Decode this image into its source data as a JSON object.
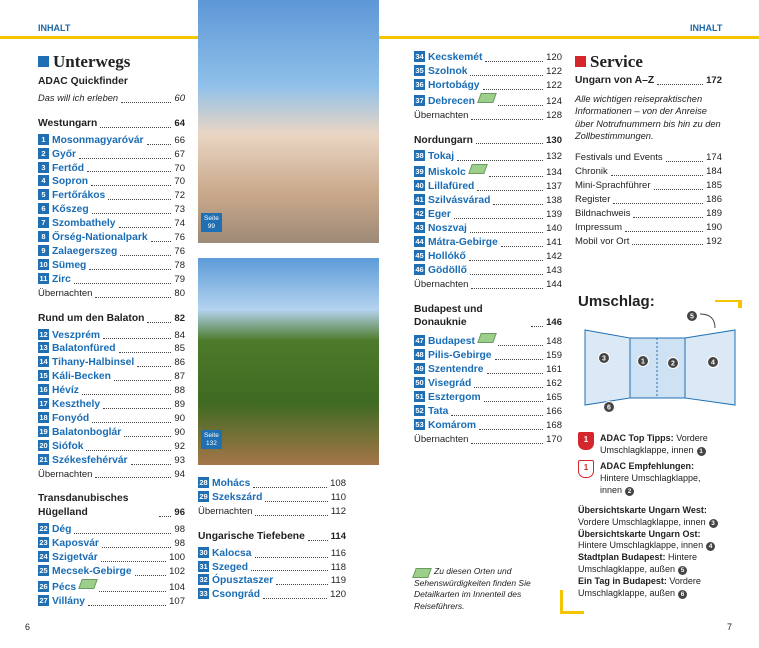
{
  "header": {
    "left": "INHALT",
    "right": "INHALT"
  },
  "pages": {
    "left": 6,
    "right": 7
  },
  "photos": [
    {
      "label": "Seite",
      "page": 99
    },
    {
      "label": "Seite",
      "page": 132
    }
  ],
  "unterwegs": {
    "title": "Unterwegs",
    "columns": [
      [
        {
          "heading": "ADAC Quickfinder",
          "intro": {
            "text": "Das will ich erleben",
            "page": 60
          }
        },
        {
          "heading": "Westungarn",
          "page": 64,
          "items": [
            {
              "num": 1,
              "name": "Mosonmagyaróvár",
              "page": 66
            },
            {
              "num": 2,
              "name": "Győr",
              "page": 67
            },
            {
              "num": 3,
              "name": "Fertőd",
              "page": 70
            },
            {
              "num": 4,
              "name": "Sopron",
              "page": 70
            },
            {
              "num": 5,
              "name": "Fertőrákos",
              "page": 72
            },
            {
              "num": 6,
              "name": "Kőszeg",
              "page": 73
            },
            {
              "num": 7,
              "name": "Szombathely",
              "page": 74
            },
            {
              "num": 8,
              "name": "Őrség-Nationalpark",
              "page": 76
            },
            {
              "num": 9,
              "name": "Zalaegerszeg",
              "page": 76
            },
            {
              "num": 10,
              "name": "Sümeg",
              "page": 78
            },
            {
              "num": 11,
              "name": "Zirc",
              "page": 79
            },
            {
              "name": "Übernachten",
              "page": 80
            }
          ]
        },
        {
          "heading": "Rund um den Balaton",
          "page": 82,
          "items": [
            {
              "num": 12,
              "name": "Veszprém",
              "page": 84
            },
            {
              "num": 13,
              "name": "Balatonfüred",
              "page": 85
            },
            {
              "num": 14,
              "name": "Tihany-Halbinsel",
              "page": 86
            },
            {
              "num": 15,
              "name": "Káli-Becken",
              "page": 87
            },
            {
              "num": 16,
              "name": "Hévíz",
              "page": 88
            },
            {
              "num": 17,
              "name": "Keszthely",
              "page": 89
            },
            {
              "num": 18,
              "name": "Fonyód",
              "page": 90
            },
            {
              "num": 19,
              "name": "Balatonboglár",
              "page": 90
            },
            {
              "num": 20,
              "name": "Siófok",
              "page": 92
            },
            {
              "num": 21,
              "name": "Székesfehérvár",
              "page": 93
            },
            {
              "name": "Übernachten",
              "page": 94
            }
          ]
        },
        {
          "heading": "Transdanubisches Hügelland",
          "page": 96,
          "items": [
            {
              "num": 22,
              "name": "Dég",
              "page": 98
            },
            {
              "num": 23,
              "name": "Kaposvár",
              "page": 98
            },
            {
              "num": 24,
              "name": "Szigetvár",
              "page": 100
            },
            {
              "num": 25,
              "name": "Mecsek-Gebirge",
              "page": 102
            },
            {
              "num": 26,
              "name": "Pécs",
              "page": 104,
              "map": true
            },
            {
              "num": 27,
              "name": "Villány",
              "page": 107
            }
          ]
        }
      ],
      [
        {
          "items": [
            {
              "num": 28,
              "name": "Mohács",
              "page": 108
            },
            {
              "num": 29,
              "name": "Szekszárd",
              "page": 110
            },
            {
              "name": "Übernachten",
              "page": 112
            }
          ]
        },
        {
          "heading": "Ungarische Tiefebene",
          "page": 114,
          "items": [
            {
              "num": 30,
              "name": "Kalocsa",
              "page": 116
            },
            {
              "num": 31,
              "name": "Szeged",
              "page": 118
            },
            {
              "num": 32,
              "name": "Ópusztaszer",
              "page": 119
            },
            {
              "num": 33,
              "name": "Csongrád",
              "page": 120
            }
          ]
        }
      ],
      [
        {
          "items": [
            {
              "num": 34,
              "name": "Kecskemét",
              "page": 120
            },
            {
              "num": 35,
              "name": "Szolnok",
              "page": 122
            },
            {
              "num": 36,
              "name": "Hortobágy",
              "page": 122
            },
            {
              "num": 37,
              "name": "Debrecen",
              "page": 124,
              "map": true
            },
            {
              "name": "Übernachten",
              "page": 128
            }
          ]
        },
        {
          "heading": "Nordungarn",
          "page": 130,
          "items": [
            {
              "num": 38,
              "name": "Tokaj",
              "page": 132
            },
            {
              "num": 39,
              "name": "Miskolc",
              "page": 134,
              "map": true
            },
            {
              "num": 40,
              "name": "Lillafüred",
              "page": 137
            },
            {
              "num": 41,
              "name": "Szilvásvárad",
              "page": 138
            },
            {
              "num": 42,
              "name": "Eger",
              "page": 139
            },
            {
              "num": 43,
              "name": "Noszvaj",
              "page": 140
            },
            {
              "num": 44,
              "name": "Mátra-Gebirge",
              "page": 141
            },
            {
              "num": 45,
              "name": "Hollókő",
              "page": 142
            },
            {
              "num": 46,
              "name": "Gödöllő",
              "page": 143
            },
            {
              "name": "Übernachten",
              "page": 144
            }
          ]
        },
        {
          "heading": "Budapest und Donauknie",
          "page": 146,
          "items": [
            {
              "num": 47,
              "name": "Budapest",
              "page": 148,
              "map": true
            },
            {
              "num": 48,
              "name": "Pilis-Gebirge",
              "page": 159
            },
            {
              "num": 49,
              "name": "Szentendre",
              "page": 161
            },
            {
              "num": 50,
              "name": "Visegrád",
              "page": 162
            },
            {
              "num": 51,
              "name": "Esztergom",
              "page": 165
            },
            {
              "num": 52,
              "name": "Tata",
              "page": 166
            },
            {
              "num": 53,
              "name": "Komárom",
              "page": 168
            },
            {
              "name": "Übernachten",
              "page": 170
            }
          ]
        }
      ]
    ]
  },
  "footnote": "Zu diesen Orten und Sehenswürdigkeiten finden Sie Detailkarten im Innenteil des Reiseführers.",
  "service": {
    "title": "Service",
    "blocks": [
      {
        "heading": "Ungarn von A–Z",
        "page": 172,
        "intro": {
          "text": "Alle wichtigen reisepraktischen Informationen – von der Anreise über Notrufnummern bis hin zu den Zollbestimmungen."
        }
      },
      {
        "items": [
          {
            "name": "Festivals und Events",
            "page": 174
          },
          {
            "name": "Chronik",
            "page": 184
          },
          {
            "name": "Mini-Sprachführer",
            "page": 185
          },
          {
            "name": "Register",
            "page": 186
          },
          {
            "name": "Bildnachweis",
            "page": 189
          },
          {
            "name": "Impressum",
            "page": 190
          },
          {
            "name": "Mobil vor Ort",
            "page": 192
          }
        ]
      }
    ]
  },
  "umschlag": {
    "title": "Umschlag:",
    "markers": [
      1,
      2,
      3,
      4,
      5,
      6
    ],
    "legend": [
      {
        "icon": 1,
        "label": "ADAC Top Tipps:",
        "text": "Vordere Umschlagklappe, innen",
        "ref": 1
      },
      {
        "icon": 1,
        "label": "ADAC Empfehlungen:",
        "text": "Hintere Umschlagklappe, innen",
        "ref": 2
      }
    ],
    "maps": [
      {
        "label": "Übersichtskarte Ungarn West:",
        "text": "Vordere Umschlagklappe, innen",
        "ref": 3
      },
      {
        "label": "Übersichtskarte Ungarn Ost:",
        "text": "Hintere Umschlagklappe, innen",
        "ref": 4
      },
      {
        "label": "Stadtplan Budapest:",
        "text": "Hintere Umschlagklappe, außen",
        "ref": 5
      },
      {
        "label": "Ein Tag in Budapest:",
        "text": "Vordere Umschlagklappe, außen",
        "ref": 6
      }
    ]
  }
}
